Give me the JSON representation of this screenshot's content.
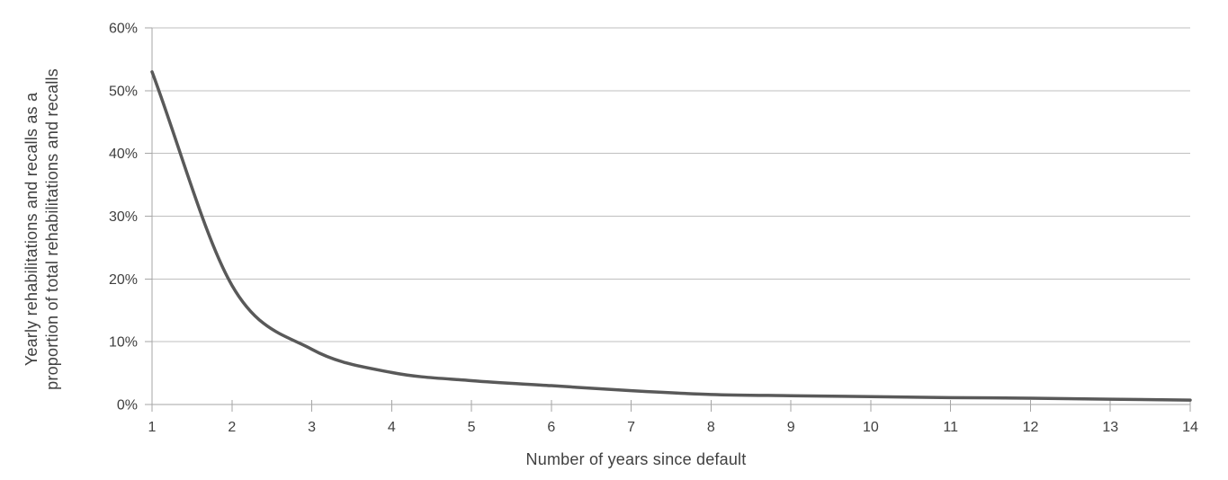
{
  "chart_data": {
    "type": "line",
    "x": [
      1,
      2,
      3,
      4,
      5,
      6,
      7,
      8,
      9,
      10,
      11,
      12,
      13,
      14
    ],
    "series": [
      {
        "name": "Yearly rehabilitations and recalls",
        "values": [
          53.0,
          19.0,
          8.8,
          5.1,
          3.8,
          3.0,
          2.2,
          1.6,
          1.4,
          1.25,
          1.1,
          1.0,
          0.85,
          0.7
        ],
        "color": "#595959"
      }
    ],
    "title": "",
    "xlabel": "Number of years since default",
    "ylabel": "Yearly rehabilitations and recalls as a proportion of total rehabilitations and recalls",
    "ylabel_lines": [
      "Yearly rehabilitations and recalls as a",
      "proportion of total rehabilitations and recalls"
    ],
    "xlim": [
      1,
      14
    ],
    "ylim": [
      0,
      60
    ],
    "y_tick_step": 10,
    "y_tick_labels": [
      "0%",
      "10%",
      "20%",
      "30%",
      "40%",
      "50%",
      "60%"
    ],
    "x_tick_labels": [
      "1",
      "2",
      "3",
      "4",
      "5",
      "6",
      "7",
      "8",
      "9",
      "10",
      "11",
      "12",
      "13",
      "14"
    ],
    "grid": "horizontal",
    "legend": "none",
    "line_smoothing": true
  },
  "colors": {
    "background": "#FFFFFF",
    "gridline": "#BFBFBF",
    "axis": "#A6A6A6",
    "tick": "#A6A6A6",
    "text": "#404040",
    "line": "#595959"
  }
}
